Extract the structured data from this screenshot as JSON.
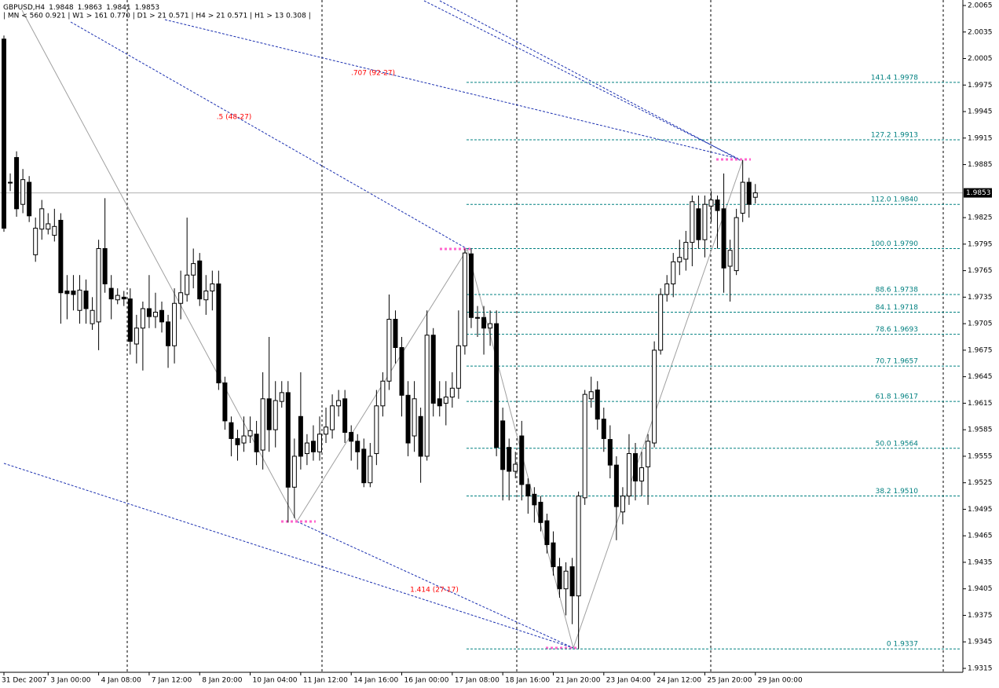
{
  "chart_data": {
    "type": "candlestick",
    "title": "GBPUSD,H4",
    "subtitle": "|  MN < 560   0.921  |  W1 > 161   0.770  |  D1 > 21   0.571  |  H4 > 21   0.571  |  H1 > 13   0.308  |",
    "categories": [
      "31 Dec 2007",
      null,
      null,
      null,
      null,
      null,
      null,
      "3 Jan 00:00",
      null,
      null,
      null,
      null,
      null,
      null,
      null,
      "4 Jan 08:00",
      null,
      null,
      null,
      null,
      null,
      null,
      null,
      "7 Jan 12:00",
      null,
      null,
      null,
      null,
      null,
      null,
      null,
      "8 Jan 20:00",
      null,
      null,
      null,
      null,
      null,
      null,
      null,
      "10 Jan 04:00",
      null,
      null,
      null,
      null,
      null,
      null,
      null,
      "11 Jan 12:00",
      null,
      null,
      null,
      null,
      null,
      null,
      null,
      "14 Jan 16:00",
      null,
      null,
      null,
      null,
      null,
      null,
      null,
      "16 Jan 00:00",
      null,
      null,
      null,
      null,
      null,
      null,
      null,
      "17 Jan 08:00",
      null,
      null,
      null,
      null,
      null,
      null,
      null,
      "18 Jan 16:00",
      null,
      null,
      null,
      null,
      null,
      null,
      null,
      "21 Jan 20:00",
      null,
      null,
      null,
      null,
      null,
      null,
      null,
      "23 Jan 04:00",
      null,
      null,
      null,
      null,
      null,
      null,
      null,
      "24 Jan 12:00",
      null,
      null,
      null,
      null,
      null,
      null,
      null,
      "25 Jan 20:00",
      null,
      null,
      null,
      null,
      null,
      null,
      null,
      "29 Jan 00:00"
    ],
    "open": [
      2.0027,
      1.9865,
      1.9893,
      1.984,
      1.9865,
      1.9783,
      1.9812,
      1.9812,
      1.9805,
      1.9822,
      1.9742,
      1.9742,
      1.972,
      1.9742,
      1.9705,
      1.9707,
      1.979,
      1.9745,
      1.9732,
      1.9735,
      1.9733,
      1.9682,
      1.97,
      1.9722,
      1.9713,
      1.972,
      1.9707,
      1.968,
      1.9728,
      1.9738,
      1.976,
      1.9776,
      1.9732,
      1.9742,
      1.975,
      1.9638,
      1.9593,
      1.9575,
      1.957,
      1.9578,
      1.958,
      1.9562,
      1.962,
      1.9585,
      1.9617,
      1.9627,
      1.952,
      1.96,
      1.9558,
      1.9572,
      1.956,
      1.958,
      1.9585,
      1.9612,
      1.962,
      1.9582,
      1.9572,
      1.9563,
      1.9525,
      1.9558,
      1.9612,
      1.964,
      1.971,
      1.9678,
      1.9624,
      1.9578,
      1.96,
      1.9555,
      1.9692,
      1.962,
      1.9615,
      1.9622,
      1.9632,
      1.968,
      1.9784,
      1.9712,
      1.9712,
      1.97,
      1.9705,
      1.9595,
      1.9565,
      1.9538,
      1.9578,
      1.9523,
      1.9512,
      1.9503,
      1.9482,
      1.9457,
      1.943,
      1.9405,
      1.943,
      1.9397,
      1.9508,
      1.962,
      1.963,
      1.9597,
      1.9574,
      1.9545,
      1.9492,
      1.951,
      1.9558,
      1.9527,
      1.9543,
      1.957,
      1.9675,
      1.9738,
      1.975,
      1.9775,
      1.9778,
      1.9797,
      1.9835,
      1.98,
      1.9838,
      1.9845,
      1.9835,
      1.977,
      1.9765,
      1.983,
      1.9865,
      1.9848
    ],
    "high": [
      2.0031,
      1.9875,
      1.99,
      1.988,
      1.9872,
      1.9825,
      1.9845,
      1.983,
      1.9835,
      1.983,
      1.976,
      1.976,
      1.976,
      1.9755,
      1.9735,
      1.98,
      1.9847,
      1.976,
      1.9745,
      1.9742,
      1.9745,
      1.9715,
      1.973,
      1.976,
      1.974,
      1.973,
      1.9715,
      1.9745,
      1.9765,
      1.9825,
      1.979,
      1.9785,
      1.976,
      1.9765,
      1.9765,
      1.9645,
      1.96,
      1.9585,
      1.96,
      1.96,
      1.9595,
      1.965,
      1.969,
      1.964,
      1.964,
      1.964,
      1.9575,
      1.965,
      1.958,
      1.959,
      1.96,
      1.961,
      1.9625,
      1.963,
      1.963,
      1.959,
      1.958,
      1.9575,
      1.957,
      1.963,
      1.965,
      1.9738,
      1.972,
      1.969,
      1.964,
      1.964,
      1.961,
      1.972,
      1.97,
      1.964,
      1.964,
      1.965,
      1.972,
      1.979,
      1.979,
      1.9725,
      1.9725,
      1.972,
      1.972,
      1.961,
      1.9575,
      1.956,
      1.9595,
      1.953,
      1.952,
      1.951,
      1.949,
      1.947,
      1.944,
      1.9435,
      1.944,
      1.9515,
      1.963,
      1.9645,
      1.964,
      1.961,
      1.959,
      1.9555,
      1.952,
      1.958,
      1.957,
      1.956,
      1.958,
      1.9685,
      1.9745,
      1.976,
      1.9785,
      1.98,
      1.981,
      1.985,
      1.985,
      1.985,
      1.9855,
      1.985,
      1.9875,
      1.98,
      1.9835,
      1.989,
      1.987,
      1.9863
    ],
    "low": [
      1.9809,
      1.9855,
      1.9826,
      1.983,
      1.982,
      1.9775,
      1.98,
      1.9806,
      1.9798,
      1.9705,
      1.971,
      1.972,
      1.9705,
      1.9705,
      1.9698,
      1.9675,
      1.974,
      1.971,
      1.9727,
      1.9725,
      1.967,
      1.966,
      1.9652,
      1.97,
      1.97,
      1.9695,
      1.9655,
      1.966,
      1.971,
      1.973,
      1.9745,
      1.9725,
      1.9715,
      1.972,
      1.963,
      1.9585,
      1.9555,
      1.955,
      1.956,
      1.957,
      1.9545,
      1.954,
      1.956,
      1.9565,
      1.961,
      1.948,
      1.9485,
      1.954,
      1.9545,
      1.955,
      1.955,
      1.957,
      1.9575,
      1.96,
      1.957,
      1.955,
      1.954,
      1.952,
      1.952,
      1.9545,
      1.96,
      1.963,
      1.966,
      1.96,
      1.9555,
      1.956,
      1.9525,
      1.955,
      1.96,
      1.96,
      1.959,
      1.961,
      1.962,
      1.967,
      1.97,
      1.969,
      1.967,
      1.968,
      1.9555,
      1.9505,
      1.9505,
      1.953,
      1.9505,
      1.949,
      1.948,
      1.947,
      1.9445,
      1.942,
      1.9395,
      1.9375,
      1.9365,
      1.9337,
      1.95,
      1.961,
      1.9585,
      1.956,
      1.953,
      1.946,
      1.9478,
      1.95,
      1.9505,
      1.951,
      1.95,
      1.9565,
      1.967,
      1.973,
      1.9735,
      1.976,
      1.9765,
      1.977,
      1.979,
      1.978,
      1.982,
      1.979,
      1.974,
      1.973,
      1.976,
      1.982,
      1.9825,
      1.9841
    ],
    "close": [
      1.9813,
      1.9865,
      1.9835,
      1.9868,
      1.9827,
      1.9813,
      1.9835,
      1.9818,
      1.9815,
      1.974,
      1.9739,
      1.9738,
      1.9743,
      1.9722,
      1.972,
      1.979,
      1.975,
      1.9733,
      1.9737,
      1.9733,
      1.9685,
      1.97,
      1.9722,
      1.9713,
      1.9718,
      1.9707,
      1.968,
      1.9728,
      1.974,
      1.976,
      1.9773,
      1.9733,
      1.9742,
      1.975,
      1.9638,
      1.9595,
      1.9575,
      1.9568,
      1.9578,
      1.9584,
      1.956,
      1.962,
      1.9585,
      1.9618,
      1.9627,
      1.952,
      1.9555,
      1.9555,
      1.957,
      1.956,
      1.958,
      1.9588,
      1.9612,
      1.9618,
      1.9582,
      1.9572,
      1.956,
      1.9525,
      1.9555,
      1.9612,
      1.964,
      1.971,
      1.9678,
      1.9624,
      1.957,
      1.962,
      1.9555,
      1.9692,
      1.9615,
      1.9612,
      1.9622,
      1.9632,
      1.968,
      1.9785,
      1.9712,
      1.9712,
      1.97,
      1.9705,
      1.9565,
      1.954,
      1.9538,
      1.9546,
      1.9523,
      1.951,
      1.95,
      1.948,
      1.9455,
      1.943,
      1.9405,
      1.9425,
      1.9397,
      1.951,
      1.9625,
      1.9628,
      1.9597,
      1.9575,
      1.9545,
      1.9498,
      1.951,
      1.9558,
      1.9527,
      1.9542,
      1.9572,
      1.9675,
      1.9738,
      1.975,
      1.9775,
      1.978,
      1.9797,
      1.9843,
      1.98,
      1.984,
      1.9845,
      1.9833,
      1.9768,
      1.9788,
      1.9825,
      1.9865,
      1.984,
      1.9853
    ],
    "ylim": [
      1.9315,
      2.0065
    ],
    "yticks": [
      2.0065,
      2.0035,
      2.0005,
      1.9975,
      1.9945,
      1.9915,
      1.9885,
      1.9825,
      1.9795,
      1.9765,
      1.9735,
      1.9705,
      1.9675,
      1.9645,
      1.9615,
      1.9585,
      1.9555,
      1.9525,
      1.9495,
      1.9465,
      1.9435,
      1.9405,
      1.9375,
      1.9345,
      1.9315
    ],
    "levels": [
      {
        "value": 1.9978,
        "label": "141.4  1.9978"
      },
      {
        "value": 1.9913,
        "label": "127.2  1.9913"
      },
      {
        "value": 1.984,
        "label": "112.0  1.9840"
      },
      {
        "value": 1.979,
        "label": "100.0  1.9790"
      },
      {
        "value": 1.9738,
        "label": "88.6  1.9738"
      },
      {
        "value": 1.9718,
        "label": "84.1  1.9718"
      },
      {
        "value": 1.9693,
        "label": "78.6  1.9693"
      },
      {
        "value": 1.9657,
        "label": "70.7  1.9657"
      },
      {
        "value": 1.9617,
        "label": "61.8  1.9617"
      },
      {
        "value": 1.9564,
        "label": "50.0  1.9564"
      },
      {
        "value": 1.951,
        "label": "38.2  1.9510"
      },
      {
        "value": 1.9337,
        "label": "0  1.9337"
      }
    ],
    "annotations": [
      ".707 (92-27)",
      ".5 (48-27)",
      "1.414 (27-17)"
    ]
  }
}
